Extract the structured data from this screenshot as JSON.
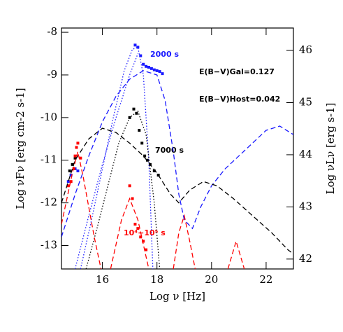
{
  "chart_data": {
    "type": "line",
    "xlabel": "Log ν [Hz]",
    "ylabel": "Log νFν [erg cm-2 s-1]",
    "y2label": "Log νLν [erg s-1]",
    "xlim": [
      14.5,
      23
    ],
    "ylim": [
      -13.55,
      -7.9
    ],
    "y2lim": [
      41.81,
      46.43
    ],
    "xticks": [
      16,
      18,
      20,
      22
    ],
    "yticks": [
      -13,
      -12,
      -11,
      -10,
      -9,
      -8
    ],
    "y2ticks": [
      42,
      43,
      44,
      45,
      46
    ],
    "annotations": [
      "2000 s",
      "7000 s",
      "10⁴−10⁵ s",
      "E(B−V)Gal=0.127",
      "E(B−V)Host=0.042"
    ],
    "series": [
      {
        "style": "points",
        "color": "#1a1aff",
        "x": [
          14.75,
          14.85,
          15.0,
          15.1,
          17.2,
          17.3,
          17.4,
          17.5,
          17.6,
          17.7,
          17.8,
          17.9,
          18.0,
          18.1,
          18.2
        ],
        "y": [
          -11.5,
          -11.35,
          -11.2,
          -11.25,
          -8.3,
          -8.35,
          -8.55,
          -8.75,
          -8.8,
          -8.82,
          -8.85,
          -8.88,
          -8.9,
          -8.92,
          -8.97
        ]
      },
      {
        "style": "points",
        "color": "#000000",
        "x": [
          14.8,
          14.9,
          15.0,
          17.0,
          17.15,
          17.25,
          17.35,
          17.45,
          17.55,
          17.65,
          17.75,
          17.9,
          18.05
        ],
        "y": [
          -11.25,
          -11.1,
          -10.95,
          -10.0,
          -9.8,
          -9.9,
          -10.3,
          -10.6,
          -10.9,
          -11.0,
          -11.1,
          -11.25,
          -11.35
        ]
      },
      {
        "style": "points",
        "color": "#ff0000",
        "x": [
          14.75,
          14.85,
          14.95,
          15.0,
          15.05,
          15.1,
          15.2,
          17.0,
          17.1,
          17.2,
          17.3,
          17.4,
          17.5,
          17.6
        ],
        "y": [
          -11.6,
          -11.5,
          -11.2,
          -10.9,
          -10.7,
          -10.6,
          -10.95,
          -11.6,
          -11.9,
          -12.5,
          -12.6,
          -12.8,
          -12.9,
          -13.1
        ]
      },
      {
        "style": "dashed",
        "color": "#1a1aff",
        "x": [
          14.5,
          15,
          15.5,
          16,
          16.5,
          17,
          17.5,
          18,
          18.3,
          18.6,
          18.8,
          19.0,
          19.3,
          19.6,
          20,
          20.5,
          21,
          21.5,
          22,
          22.5,
          23
        ],
        "y": [
          -12.8,
          -11.8,
          -10.9,
          -10.1,
          -9.5,
          -9.1,
          -8.9,
          -9.0,
          -9.6,
          -10.8,
          -11.8,
          -12.4,
          -12.6,
          -12.1,
          -11.6,
          -11.2,
          -10.9,
          -10.6,
          -10.3,
          -10.2,
          -10.4
        ]
      },
      {
        "style": "dotted",
        "color": "#1a1aff",
        "x": [
          15.2,
          15.6,
          16,
          16.4,
          16.8,
          17.1,
          17.3,
          17.5,
          17.7,
          17.85
        ],
        "y": [
          -13.55,
          -12.4,
          -11.2,
          -10.0,
          -8.9,
          -8.4,
          -8.35,
          -9.0,
          -11.0,
          -13.55
        ]
      },
      {
        "style": "dotted",
        "color": "#1a1aff",
        "x": [
          15.0,
          15.5,
          16,
          16.5,
          17,
          17.3
        ],
        "y": [
          -13.55,
          -12.3,
          -11.1,
          -10.0,
          -9.0,
          -8.5
        ]
      },
      {
        "style": "dashed",
        "color": "#000000",
        "x": [
          14.5,
          15,
          15.5,
          16,
          16.5,
          17,
          17.5,
          18,
          18.5,
          18.8,
          19.2,
          19.7,
          20.2,
          20.8,
          21.5,
          22.2,
          22.8,
          23
        ],
        "y": [
          -12.0,
          -11.0,
          -10.5,
          -10.25,
          -10.35,
          -10.6,
          -10.9,
          -11.3,
          -11.8,
          -12.0,
          -11.7,
          -11.5,
          -11.6,
          -11.9,
          -12.3,
          -12.7,
          -13.1,
          -13.2
        ]
      },
      {
        "style": "dotted",
        "color": "#000000",
        "x": [
          15.4,
          15.8,
          16.2,
          16.6,
          17,
          17.3,
          17.6,
          17.9,
          18.1
        ],
        "y": [
          -13.55,
          -12.6,
          -11.6,
          -10.6,
          -10.0,
          -9.85,
          -10.4,
          -12.0,
          -13.55
        ]
      },
      {
        "style": "dashed",
        "color": "#ff0000",
        "x": [
          14.5,
          14.9,
          15.1,
          15.3,
          15.7,
          15.95,
          null,
          16.3,
          16.7,
          17.0,
          17.3,
          17.7,
          null,
          18.6,
          18.8,
          19.0,
          19.2,
          19.4,
          null,
          20.6,
          20.9,
          21.2
        ],
        "y": [
          -12.5,
          -11.3,
          -10.8,
          -11.4,
          -12.8,
          -13.55,
          null,
          -13.55,
          -12.4,
          -11.9,
          -12.4,
          -13.55,
          null,
          -13.55,
          -12.7,
          -12.3,
          -12.9,
          -13.55,
          null,
          -13.55,
          -12.9,
          -13.55
        ]
      }
    ]
  }
}
